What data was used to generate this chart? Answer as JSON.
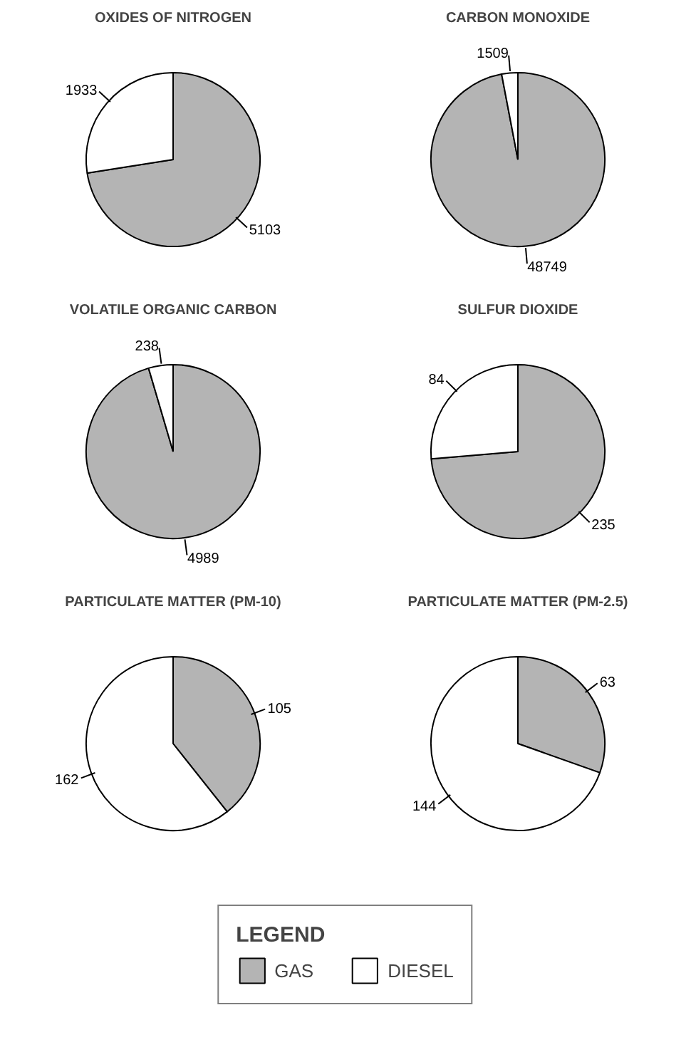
{
  "chart_data": [
    {
      "type": "pie",
      "title": "OXIDES OF NITROGEN",
      "categories": [
        null,
        null
      ],
      "values": [
        5103,
        1933
      ],
      "colors": [
        "#b4b4b4",
        "#ffffff"
      ],
      "data_labels": true
    },
    {
      "type": "pie",
      "title": "CARBON MONOXIDE",
      "categories": [
        null,
        null
      ],
      "values": [
        48749,
        1509
      ],
      "colors": [
        "#b4b4b4",
        "#ffffff"
      ],
      "data_labels": true
    },
    {
      "type": "pie",
      "title": "VOLATILE ORGANIC CARBON",
      "categories": [
        null,
        null
      ],
      "values": [
        4989,
        238
      ],
      "colors": [
        "#b4b4b4",
        "#ffffff"
      ],
      "data_labels": true
    },
    {
      "type": "pie",
      "title": "SULFUR DIOXIDE",
      "categories": [
        null,
        null
      ],
      "values": [
        235,
        84
      ],
      "colors": [
        "#b4b4b4",
        "#ffffff"
      ],
      "data_labels": true
    },
    {
      "type": "pie",
      "title": "PARTICULATE MATTER (PM-10)",
      "categories": [
        null,
        null
      ],
      "values": [
        105,
        162
      ],
      "colors": [
        "#b4b4b4",
        "#ffffff"
      ],
      "data_labels": true
    },
    {
      "type": "pie",
      "title": "PARTICULATE MATTER (PM-2.5)",
      "categories": [
        "GAS",
        "DIESEL"
      ],
      "values": [
        63,
        144
      ],
      "colors": [
        "#b4b4b4",
        "#ffffff"
      ],
      "data_labels": true,
      "legend": "bottom",
      "legend_title": "LEGEND"
    }
  ]
}
